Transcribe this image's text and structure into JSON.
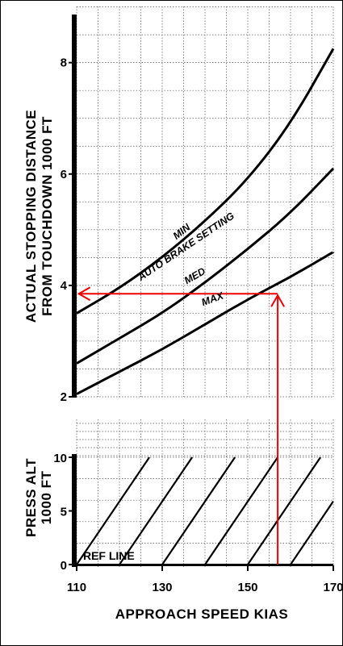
{
  "chart_data": [
    {
      "type": "line",
      "title": "",
      "xlabel": "APPROACH SPEED KIAS",
      "ylabel": "ACTUAL STOPPING DISTANCE",
      "ylabel2": "FROM TOUCHDOWN 1000 FT",
      "xlim": [
        110,
        170
      ],
      "ylim": [
        2,
        9
      ],
      "y_ticks": [
        "2",
        "4",
        "6",
        "8"
      ],
      "grid": true,
      "curve_group_label": "AUTO BRAKE SETTING",
      "series": [
        {
          "name": "MIN",
          "x": [
            110,
            120,
            130,
            140,
            150,
            160,
            170
          ],
          "y": [
            3.5,
            3.95,
            4.5,
            5.15,
            5.9,
            6.9,
            8.25
          ]
        },
        {
          "name": "MED",
          "x": [
            110,
            120,
            130,
            140,
            150,
            160,
            170
          ],
          "y": [
            2.6,
            3.05,
            3.5,
            4.05,
            4.65,
            5.3,
            6.1
          ]
        },
        {
          "name": "MAX",
          "x": [
            110,
            120,
            130,
            140,
            150,
            160,
            170
          ],
          "y": [
            2.05,
            2.45,
            2.85,
            3.3,
            3.75,
            4.15,
            4.6
          ]
        }
      ],
      "example_path": {
        "speed": 157,
        "press_alt": 0,
        "distance": 3.85
      }
    },
    {
      "type": "line",
      "title": "",
      "xlabel": "APPROACH SPEED KIAS",
      "ylabel": "PRESS ALT",
      "ylabel2": "1000 FT",
      "xlim": [
        110,
        170
      ],
      "ylim": [
        0,
        10
      ],
      "x_ticks": [
        "110",
        "130",
        "150",
        "170"
      ],
      "y_ticks": [
        "0",
        "5",
        "10"
      ],
      "grid": true,
      "reference_label": "REF LINE",
      "guide_lines": [
        {
          "x": [
            110,
            127
          ],
          "y": [
            0,
            10
          ]
        },
        {
          "x": [
            120,
            137
          ],
          "y": [
            0,
            10
          ]
        },
        {
          "x": [
            130,
            147
          ],
          "y": [
            0,
            10
          ]
        },
        {
          "x": [
            140,
            157
          ],
          "y": [
            0,
            10
          ]
        },
        {
          "x": [
            150,
            167
          ],
          "y": [
            0,
            10
          ]
        },
        {
          "x": [
            160,
            170
          ],
          "y": [
            0,
            5.9
          ]
        },
        {
          "x": [
            170,
            170
          ],
          "y": [
            0,
            0
          ]
        }
      ]
    }
  ]
}
